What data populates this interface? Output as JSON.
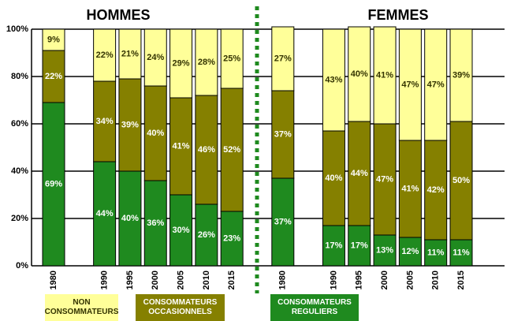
{
  "chart_data": {
    "type": "stacked_bar",
    "group_labels": [
      "HOMMES",
      "FEMMES"
    ],
    "categories": [
      "1980",
      null,
      "1990",
      "1995",
      "2000",
      "2005",
      "2010",
      "2015",
      null,
      "1980",
      null,
      "1990",
      "1995",
      "2000",
      "2005",
      "2010",
      "2015"
    ],
    "series": [
      {
        "name": "CONSOMMATEURS REGULIERS",
        "color": "#1f8a1f",
        "label_color": "#ffffff",
        "values": [
          69,
          null,
          44,
          40,
          36,
          30,
          26,
          23,
          null,
          37,
          null,
          17,
          17,
          13,
          12,
          11,
          11
        ],
        "value_labels": [
          "69%",
          null,
          "44%",
          "40%",
          "36%",
          "30%",
          "26%",
          "23%",
          null,
          "37%",
          null,
          "17%",
          "17%",
          "13%",
          "12%",
          "11%",
          "11%"
        ]
      },
      {
        "name": "CONSOMMATEURS OCCASIONNELS",
        "color": "#858000",
        "label_color": "#ffffff",
        "values": [
          22,
          null,
          34,
          39,
          40,
          41,
          46,
          52,
          null,
          37,
          null,
          40,
          44,
          47,
          41,
          42,
          50
        ],
        "value_labels": [
          "22%",
          null,
          "34%",
          "39%",
          "40%",
          "41%",
          "46%",
          "52%",
          null,
          "37%",
          null,
          "40%",
          "44%",
          "47%",
          "41%",
          "42%",
          "50%"
        ]
      },
      {
        "name": "NON CONSOMMATEURS",
        "color": "#ffff99",
        "label_color": "#333300",
        "values": [
          9,
          null,
          22,
          21,
          24,
          29,
          28,
          25,
          null,
          27,
          null,
          43,
          40,
          41,
          47,
          47,
          39
        ],
        "value_labels": [
          "9%",
          null,
          "22%",
          "21%",
          "24%",
          "29%",
          "28%",
          "25%",
          null,
          "27%",
          null,
          "43%",
          "40%",
          "41%",
          "47%",
          "47%",
          "39%"
        ]
      }
    ],
    "ylim": [
      0,
      100
    ],
    "yticks": [
      {
        "value": 0,
        "label": "0%"
      },
      {
        "value": 20,
        "label": "20%"
      },
      {
        "value": 40,
        "label": "40%"
      },
      {
        "value": 60,
        "label": "60%"
      },
      {
        "value": 80,
        "label": "80%"
      },
      {
        "value": 100,
        "label": "100%"
      }
    ],
    "grid": true
  }
}
